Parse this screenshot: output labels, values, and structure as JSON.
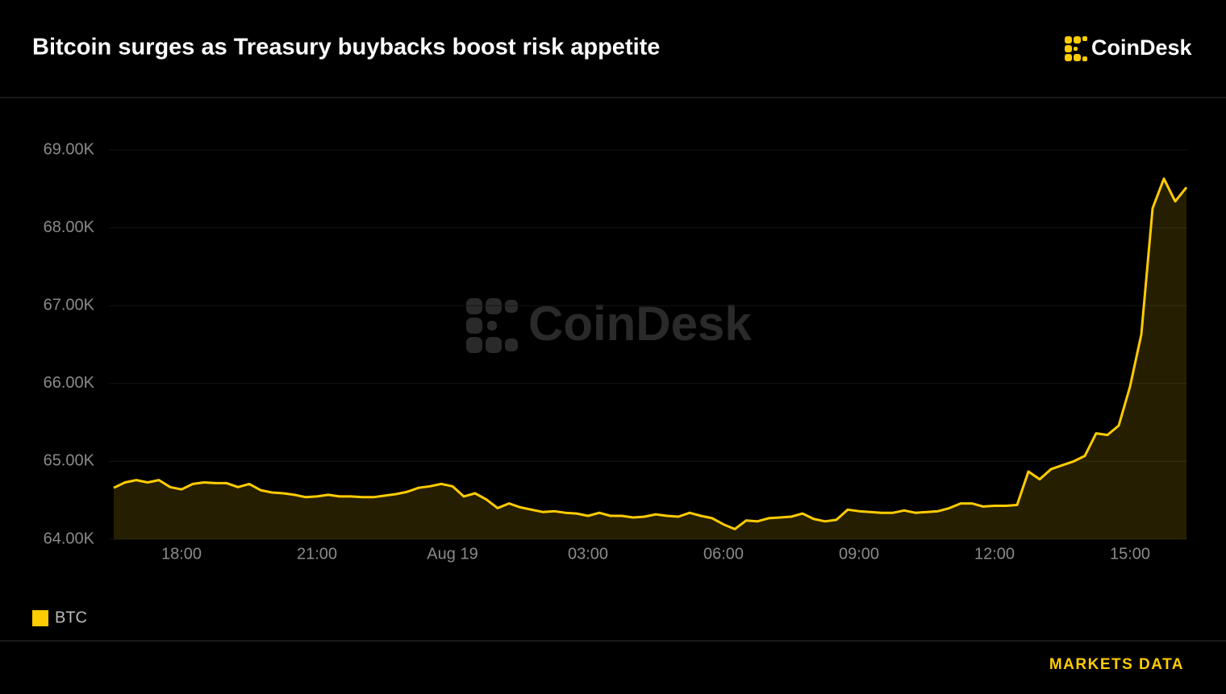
{
  "title": "Bitcoin surges as Treasury buybacks boost risk appetite",
  "brand": "CoinDesk",
  "footer": "MARKETS DATA",
  "chart_data": {
    "type": "area",
    "categories": [
      null,
      null,
      null,
      null,
      null,
      null,
      "18:00",
      null,
      null,
      null,
      null,
      null,
      null,
      null,
      null,
      null,
      null,
      null,
      "21:00",
      null,
      null,
      null,
      null,
      null,
      null,
      null,
      null,
      null,
      null,
      null,
      "Aug 19",
      null,
      null,
      null,
      null,
      null,
      null,
      null,
      null,
      null,
      null,
      null,
      "03:00",
      null,
      null,
      null,
      null,
      null,
      null,
      null,
      null,
      null,
      null,
      null,
      "06:00",
      null,
      null,
      null,
      null,
      null,
      null,
      null,
      null,
      null,
      null,
      null,
      "09:00",
      null,
      null,
      null,
      null,
      null,
      null,
      null,
      null,
      null,
      null,
      null,
      "12:00",
      null,
      null,
      null,
      null,
      null,
      null,
      null,
      null,
      null,
      null,
      null,
      "15:00",
      null,
      null,
      null,
      null,
      null
    ],
    "series": [
      {
        "name": "BTC",
        "color": "#ffcc00",
        "values": [
          64660,
          64730,
          64760,
          64730,
          64760,
          64670,
          64640,
          64710,
          64730,
          64720,
          64720,
          64670,
          64710,
          64630,
          64600,
          64590,
          64570,
          64540,
          64550,
          64570,
          64550,
          64550,
          64540,
          64540,
          64560,
          64580,
          64610,
          64660,
          64680,
          64710,
          64680,
          64550,
          64590,
          64510,
          64400,
          64460,
          64410,
          64380,
          64350,
          64360,
          64340,
          64330,
          64300,
          64340,
          64300,
          64300,
          64280,
          64290,
          64320,
          64300,
          64290,
          64340,
          64300,
          64270,
          64190,
          64130,
          64240,
          64230,
          64270,
          64280,
          64290,
          64330,
          64260,
          64230,
          64250,
          64380,
          64360,
          64350,
          64340,
          64340,
          64370,
          64340,
          64350,
          64360,
          64400,
          64460,
          64460,
          64420,
          64430,
          64430,
          64440,
          64870,
          64770,
          64900,
          64950,
          65000,
          65070,
          65360,
          65340,
          65460,
          65960,
          66630,
          68250,
          68630,
          68340,
          68520
        ]
      }
    ],
    "ylim": [
      64000,
      69000
    ],
    "yticks": [
      {
        "value": 64000,
        "label": "64.00K"
      },
      {
        "value": 65000,
        "label": "65.00K"
      },
      {
        "value": 66000,
        "label": "66.00K"
      },
      {
        "value": 67000,
        "label": "67.00K"
      },
      {
        "value": 68000,
        "label": "68.00K"
      },
      {
        "value": 69000,
        "label": "69.00K"
      }
    ],
    "grid": true,
    "legend": "bottom-left"
  }
}
